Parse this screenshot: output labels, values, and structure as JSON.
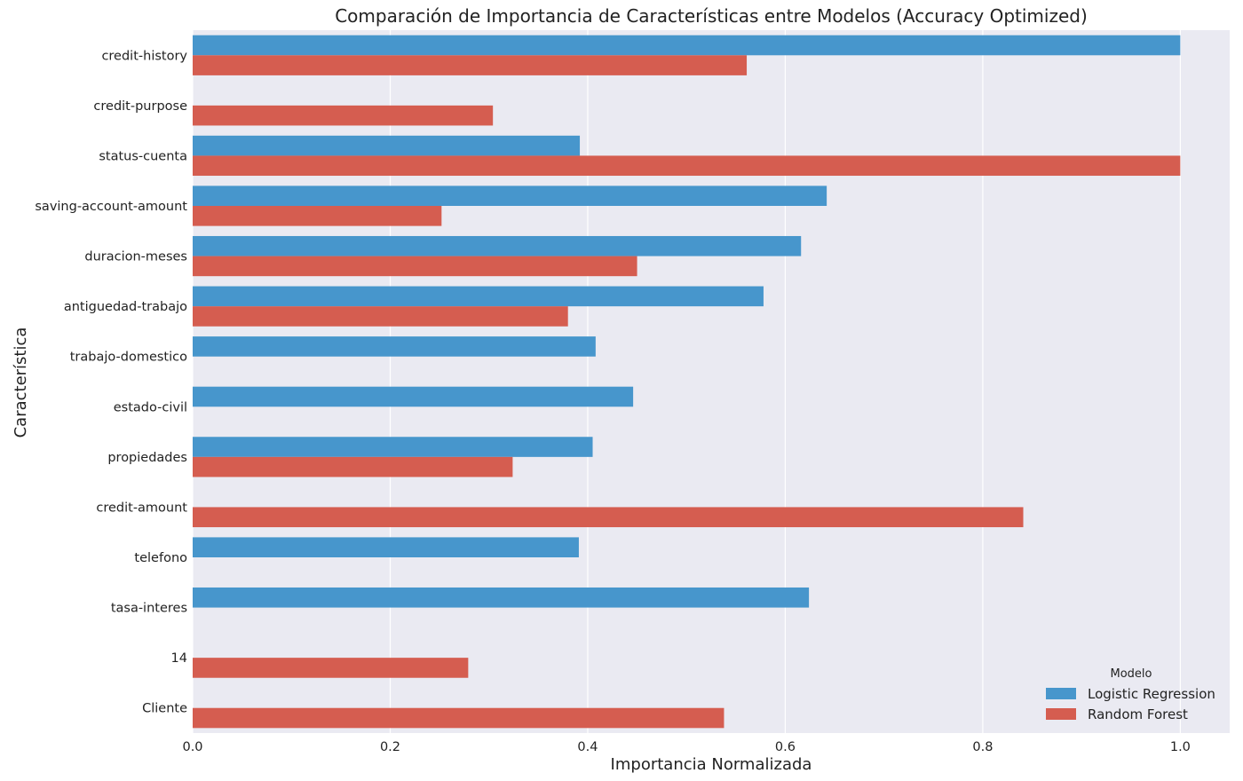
{
  "chart_data": {
    "type": "bar",
    "orientation": "horizontal",
    "title": "Comparación de Importancia de Características entre Modelos (Accuracy Optimized)",
    "xlabel": "Importancia Normalizada",
    "ylabel": "Característica",
    "xlim": [
      0.0,
      1.05
    ],
    "xticks": [
      "0.0",
      "0.2",
      "0.4",
      "0.6",
      "0.8",
      "1.0"
    ],
    "grid": true,
    "legend": {
      "title": "Modelo",
      "placement": "bottom-right"
    },
    "categories": [
      "credit-history",
      "credit-purpose",
      "status-cuenta",
      "saving-account-amount",
      "duracion-meses",
      "antiguedad-trabajo",
      "trabajo-domestico",
      "estado-civil",
      "propiedades",
      "credit-amount",
      "telefono",
      "tasa-interes",
      "14",
      "Cliente"
    ],
    "series": [
      {
        "name": "Logistic Regression",
        "color": "#4796cc",
        "values": [
          1.0,
          null,
          0.392,
          0.642,
          0.616,
          0.578,
          0.408,
          0.446,
          0.405,
          null,
          0.391,
          0.624,
          null,
          null
        ]
      },
      {
        "name": "Random Forest",
        "color": "#d55d50",
        "values": [
          0.561,
          0.304,
          1.0,
          0.252,
          0.45,
          0.38,
          null,
          null,
          0.324,
          0.841,
          null,
          null,
          0.279,
          0.538
        ]
      }
    ]
  }
}
